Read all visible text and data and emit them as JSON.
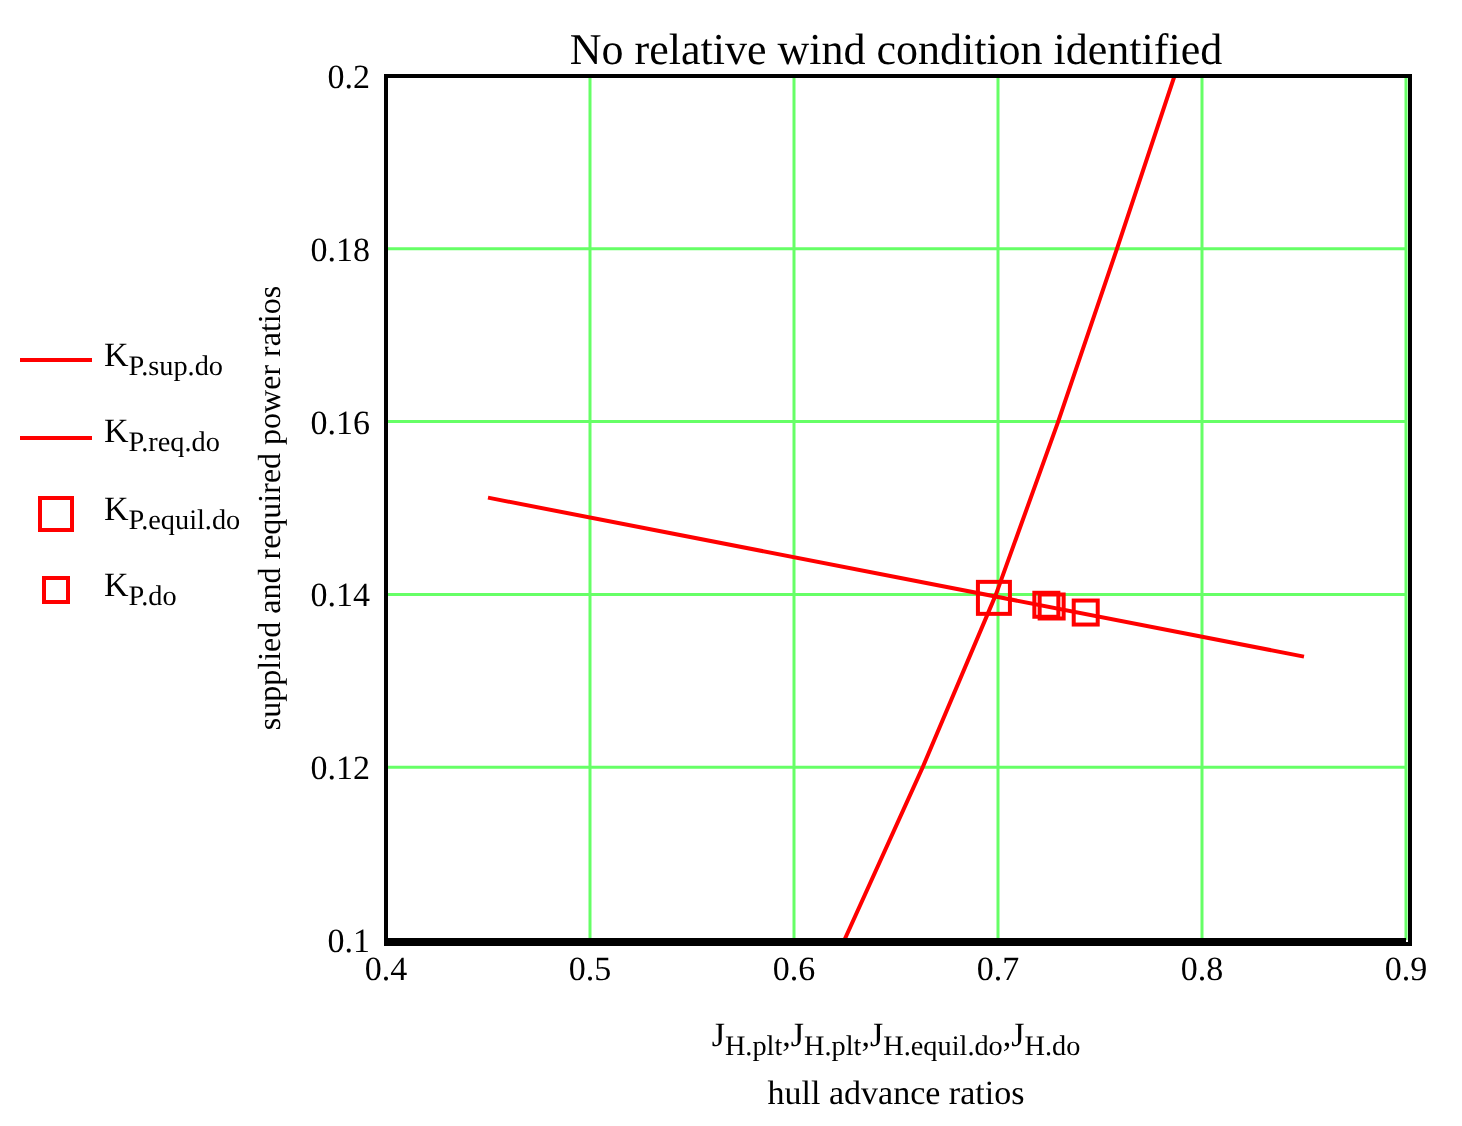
{
  "chart_data": {
    "type": "line",
    "title": "No relative wind condition identified",
    "xlabel": "J$_{H.plt}$,J$_{H.plt}$,J$_{H.equil.do}$,J$_{H.do}$\nhull advance ratios",
    "ylabel": "supplied and required power ratios",
    "series": [
      {
        "name": "K$_{P.sup.do}$",
        "color": "#ff0000",
        "marker": "none",
        "x": [
          0.45,
          0.85
        ],
        "values": [
          0.1512,
          0.1328
        ]
      },
      {
        "name": "K$_{P.req.do}$",
        "color": "#ff0000",
        "marker": "none",
        "x": [
          0.6247,
          0.6631,
          0.699,
          0.7295,
          0.7583,
          0.7865
        ],
        "values": [
          0.1,
          0.12,
          0.14,
          0.16,
          0.18,
          0.2
        ]
      },
      {
        "name": "K$_{P.equil.do}$",
        "type": "scatter",
        "color": "#ff0000",
        "marker": "square",
        "x": [
          0.698
        ],
        "values": [
          0.1396
        ]
      },
      {
        "name": "K$_{P.do}$",
        "type": "scatter",
        "color": "#ff0000",
        "marker": "square",
        "x": [
          0.7237,
          0.7263,
          0.743
        ],
        "values": [
          0.1388,
          0.1386,
          0.1379
        ]
      }
    ],
    "xlim": [
      0.4,
      0.9
    ],
    "xticks": [
      0.4,
      0.5,
      0.6,
      0.7,
      0.8,
      0.9
    ],
    "ylim": [
      0.1,
      0.2
    ],
    "yticks": [
      0.1,
      0.12,
      0.14,
      0.16,
      0.18,
      0.2
    ],
    "grid": true,
    "legend": "left"
  }
}
